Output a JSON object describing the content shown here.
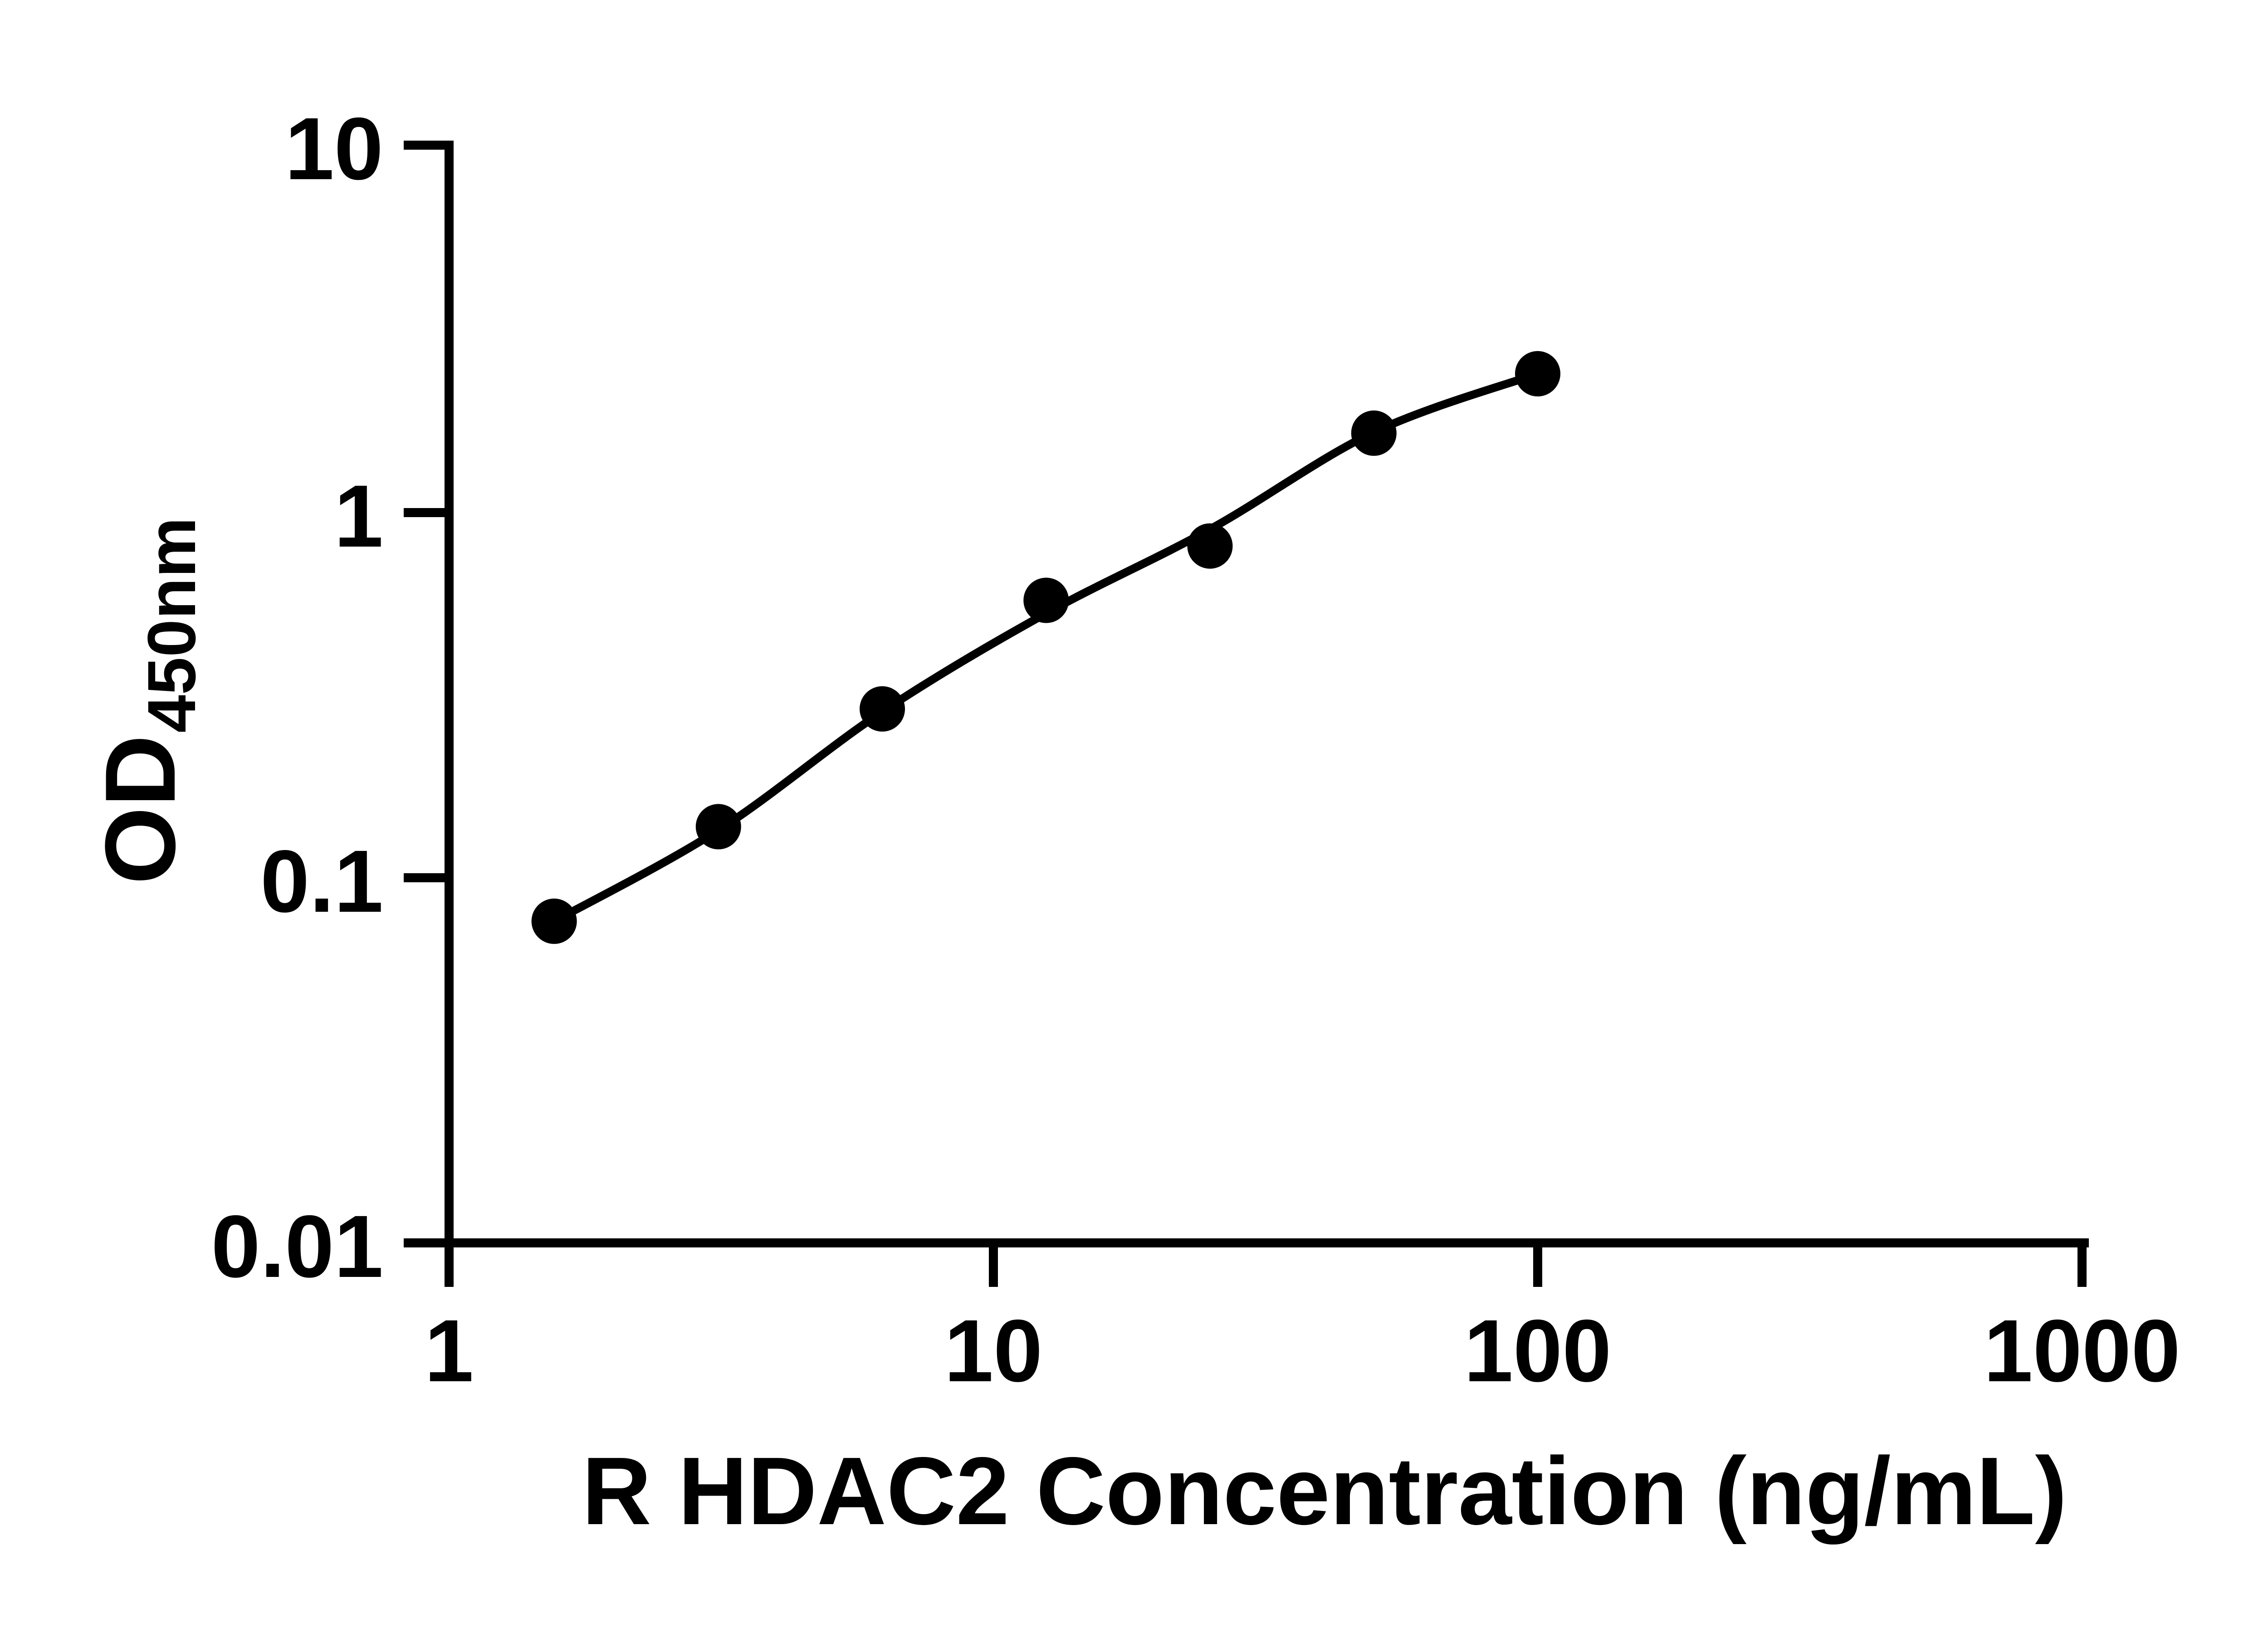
{
  "figure": {
    "background_color": "#ffffff",
    "ink_color": "#000000"
  },
  "axes": {
    "x": {
      "title": "R HDAC2 Concentration (ng/mL)",
      "scale": "log",
      "tick_labels": [
        "1",
        "10",
        "100",
        "1000"
      ]
    },
    "y": {
      "title_main": "OD",
      "title_sub": "450nm",
      "scale": "log",
      "tick_labels": [
        "10",
        "1",
        "0.1",
        "0.01"
      ]
    }
  },
  "chart_data": {
    "type": "scatter",
    "title": "",
    "xlabel": "R HDAC2 Concentration (ng/mL)",
    "ylabel": "OD450nm",
    "x_scale": "log",
    "y_scale": "log",
    "xlim": [
      1,
      1000
    ],
    "ylim": [
      0.01,
      10
    ],
    "x_ticks": [
      1,
      10,
      100,
      1000
    ],
    "y_ticks": [
      0.01,
      0.1,
      1,
      10
    ],
    "grid": false,
    "legend": "none",
    "marker": {
      "shape": "circle",
      "color": "#000000",
      "radius_px": 50
    },
    "points": [
      {
        "conc": 1.56,
        "od": 0.076
      },
      {
        "conc": 3.125,
        "od": 0.138
      },
      {
        "conc": 6.25,
        "od": 0.29
      },
      {
        "conc": 12.5,
        "od": 0.575
      },
      {
        "conc": 25,
        "od": 0.81
      },
      {
        "conc": 50,
        "od": 1.65
      },
      {
        "conc": 100,
        "od": 2.4
      }
    ],
    "fit_curve_od": [
      0.076,
      0.135,
      0.285,
      0.53,
      0.9,
      1.66,
      2.4
    ]
  }
}
